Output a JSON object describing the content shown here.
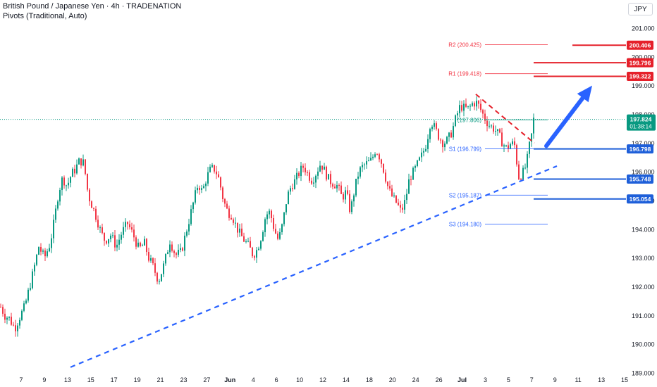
{
  "header": {
    "title": "British Pound / Japanese Yen · 4h · TRADENATION",
    "indicator": "Pivots (Traditional, Auto)"
  },
  "currency_button": "JPY",
  "colors": {
    "up": "#089981",
    "down": "#f23645",
    "resistance": "#e5202a",
    "support": "#1e5fd9",
    "trend": "#2962ff",
    "arrow": "#2962ff",
    "last_price": "#089981",
    "pivot_r": "#f23645",
    "pivot_s": "#2962ff",
    "pivot_p": "#089981"
  },
  "chart_data": {
    "type": "candlestick",
    "symbol": "GBPJPY",
    "interval": "4h",
    "ylim": [
      189.0,
      201.5
    ],
    "y_ticks": [
      189.0,
      190.0,
      191.0,
      192.0,
      193.0,
      194.0,
      195.0,
      196.0,
      197.0,
      198.0,
      199.0,
      200.0,
      201.0
    ],
    "y_tick_labels": [
      "189.000",
      "190.000",
      "191.000",
      "192.000",
      "193.000",
      "194.000",
      "195.000",
      "196.000",
      "197.000",
      "198.000",
      "199.000",
      "200.000",
      "201.000"
    ],
    "x_labels": [
      "7",
      "9",
      "13",
      "15",
      "17",
      "19",
      "21",
      "23",
      "27",
      "Jun",
      "4",
      "6",
      "10",
      "12",
      "14",
      "18",
      "20",
      "24",
      "26",
      "Jul",
      "3",
      "5",
      "7",
      "9",
      "11",
      "13",
      "15"
    ],
    "price_path": [
      [
        0,
        191.3
      ],
      [
        6,
        191.0
      ],
      [
        12,
        190.9
      ],
      [
        20,
        190.55
      ],
      [
        26,
        190.9
      ],
      [
        34,
        191.3
      ],
      [
        40,
        191.9
      ],
      [
        46,
        192.5
      ],
      [
        54,
        193.4
      ],
      [
        62,
        193.0
      ],
      [
        70,
        193.5
      ],
      [
        76,
        194.3
      ],
      [
        82,
        195.3
      ],
      [
        88,
        195.8
      ],
      [
        94,
        195.5
      ],
      [
        100,
        195.9
      ],
      [
        106,
        196.1
      ],
      [
        112,
        196.4
      ],
      [
        118,
        196.3
      ],
      [
        124,
        195.2
      ],
      [
        130,
        194.8
      ],
      [
        136,
        194.4
      ],
      [
        142,
        193.9
      ],
      [
        148,
        193.6
      ],
      [
        156,
        193.8
      ],
      [
        164,
        193.4
      ],
      [
        172,
        193.9
      ],
      [
        180,
        194.2
      ],
      [
        188,
        193.8
      ],
      [
        196,
        193.3
      ],
      [
        204,
        193.5
      ],
      [
        210,
        193.0
      ],
      [
        216,
        192.7
      ],
      [
        224,
        192.2
      ],
      [
        232,
        192.8
      ],
      [
        240,
        193.6
      ],
      [
        248,
        193.1
      ],
      [
        256,
        193.2
      ],
      [
        264,
        194.0
      ],
      [
        272,
        194.8
      ],
      [
        280,
        195.6
      ],
      [
        286,
        195.3
      ],
      [
        292,
        195.8
      ],
      [
        298,
        196.1
      ],
      [
        304,
        196.1
      ],
      [
        310,
        195.7
      ],
      [
        316,
        195.0
      ],
      [
        322,
        194.6
      ],
      [
        328,
        194.5
      ],
      [
        334,
        194.1
      ],
      [
        340,
        193.8
      ],
      [
        346,
        193.6
      ],
      [
        352,
        193.4
      ],
      [
        358,
        193.1
      ],
      [
        364,
        193.3
      ],
      [
        370,
        193.8
      ],
      [
        376,
        194.5
      ],
      [
        382,
        194.6
      ],
      [
        388,
        194.0
      ],
      [
        394,
        193.6
      ],
      [
        400,
        194.2
      ],
      [
        406,
        195.1
      ],
      [
        412,
        195.5
      ],
      [
        418,
        195.7
      ],
      [
        424,
        196.0
      ],
      [
        430,
        196.2
      ],
      [
        436,
        195.9
      ],
      [
        442,
        195.7
      ],
      [
        448,
        196.0
      ],
      [
        454,
        196.3
      ],
      [
        460,
        196.0
      ],
      [
        466,
        195.7
      ],
      [
        472,
        195.6
      ],
      [
        478,
        195.5
      ],
      [
        484,
        195.1
      ],
      [
        490,
        195.3
      ],
      [
        496,
        194.6
      ],
      [
        502,
        195.4
      ],
      [
        508,
        196.0
      ],
      [
        514,
        196.2
      ],
      [
        520,
        196.3
      ],
      [
        526,
        196.4
      ],
      [
        532,
        196.8
      ],
      [
        538,
        196.5
      ],
      [
        544,
        196.0
      ],
      [
        550,
        195.4
      ],
      [
        556,
        195.1
      ],
      [
        562,
        194.9
      ],
      [
        568,
        194.6
      ],
      [
        574,
        195.0
      ],
      [
        580,
        195.8
      ],
      [
        586,
        196.0
      ],
      [
        592,
        196.3
      ],
      [
        598,
        196.6
      ],
      [
        604,
        197.0
      ],
      [
        610,
        197.8
      ],
      [
        616,
        197.5
      ],
      [
        622,
        197.2
      ],
      [
        628,
        197.0
      ],
      [
        634,
        197.1
      ],
      [
        640,
        197.4
      ],
      [
        646,
        197.9
      ],
      [
        652,
        198.3
      ],
      [
        658,
        198.2
      ],
      [
        664,
        198.2
      ],
      [
        670,
        198.4
      ],
      [
        676,
        198.4
      ],
      [
        682,
        198.1
      ],
      [
        688,
        197.8
      ],
      [
        694,
        197.6
      ],
      [
        700,
        197.5
      ],
      [
        706,
        197.3
      ],
      [
        712,
        197.0
      ],
      [
        718,
        196.8
      ],
      [
        724,
        197.0
      ],
      [
        730,
        196.9
      ],
      [
        734,
        195.8
      ],
      [
        738,
        195.9
      ],
      [
        742,
        196.0
      ],
      [
        746,
        196.3
      ],
      [
        750,
        196.9
      ],
      [
        754,
        197.4
      ],
      [
        756,
        197.82
      ]
    ],
    "pivots": [
      {
        "label": "R2",
        "value": 200.425,
        "text": "R2 (200.425)"
      },
      {
        "label": "R1",
        "value": 199.418,
        "text": "R1 (199.418)"
      },
      {
        "label": "P",
        "value": 197.806,
        "text": "(197.806)"
      },
      {
        "label": "S1",
        "value": 196.799,
        "text": "S1 (196.799)"
      },
      {
        "label": "S2",
        "value": 195.187,
        "text": "S2 (195.187)"
      },
      {
        "label": "S3",
        "value": 194.18,
        "text": "S3 (194.180)"
      }
    ],
    "key_levels": [
      {
        "value": 200.406,
        "label": "200.406",
        "kind": "resistance"
      },
      {
        "value": 199.796,
        "label": "199.796",
        "kind": "resistance"
      },
      {
        "value": 199.322,
        "label": "199.322",
        "kind": "resistance"
      },
      {
        "value": 196.798,
        "label": "196.798",
        "kind": "support"
      },
      {
        "value": 195.748,
        "label": "195.748",
        "kind": "support"
      },
      {
        "value": 195.054,
        "label": "195.054",
        "kind": "support"
      }
    ],
    "last_price": {
      "value": 197.824,
      "label": "197.824",
      "countdown": "01:38:14"
    },
    "trendline": {
      "from": [
        100,
        189.2
      ],
      "to": [
        790,
        196.2
      ]
    },
    "downtrend_line": {
      "from": [
        675,
        198.7
      ],
      "to": [
        758,
        197.0
      ]
    },
    "arrow": {
      "from": [
        775,
        196.9
      ],
      "to": [
        840,
        199.0
      ]
    }
  }
}
